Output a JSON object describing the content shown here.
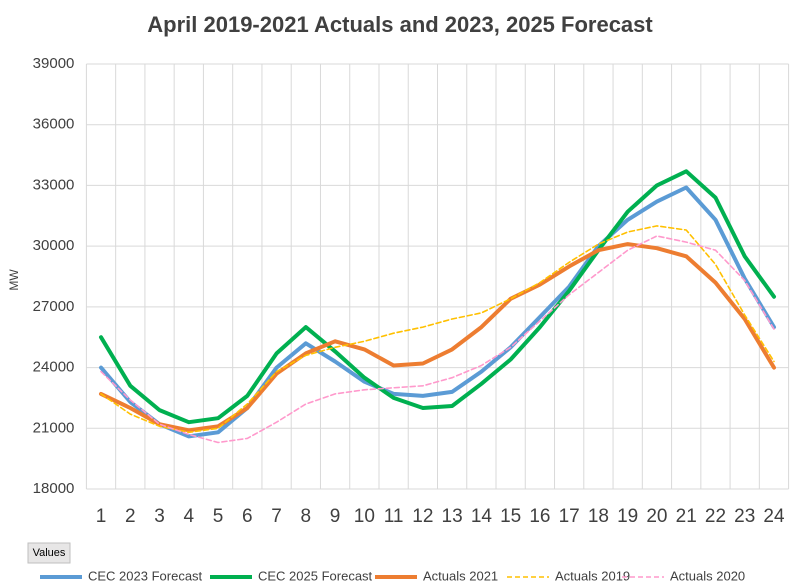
{
  "chart_data": {
    "type": "line",
    "title": "April 2019-2021 Actuals and 2023, 2025 Forecast",
    "y_label": "MW",
    "field_button": "Values",
    "categories": [
      "1",
      "2",
      "3",
      "4",
      "5",
      "6",
      "7",
      "8",
      "9",
      "10",
      "11",
      "12",
      "13",
      "14",
      "15",
      "16",
      "17",
      "18",
      "19",
      "20",
      "21",
      "22",
      "23",
      "24"
    ],
    "ylim": [
      18000,
      39000
    ],
    "yticks": [
      18000,
      21000,
      24000,
      27000,
      30000,
      33000,
      36000,
      39000
    ],
    "grid": true,
    "legend": "bottom",
    "series": [
      {
        "name": "CEC 2023 Forecast",
        "color": "#5b9bd5",
        "dashed": false,
        "values": [
          24000,
          22300,
          21200,
          20600,
          20800,
          22000,
          24000,
          25200,
          24300,
          23300,
          22700,
          22600,
          22800,
          23800,
          25000,
          26500,
          28000,
          30000,
          31300,
          32200,
          32900,
          31300,
          28400,
          26000
        ]
      },
      {
        "name": "CEC 2025 Forecast",
        "color": "#00b050",
        "dashed": false,
        "values": [
          25500,
          23100,
          21900,
          21300,
          21500,
          22600,
          24700,
          26000,
          24800,
          23500,
          22500,
          22000,
          22100,
          23200,
          24400,
          26000,
          27800,
          29800,
          31700,
          33000,
          33700,
          32400,
          29500,
          27500
        ]
      },
      {
        "name": "Actuals 2021",
        "color": "#ed7d31",
        "dashed": false,
        "values": [
          22700,
          22000,
          21200,
          20900,
          21100,
          22000,
          23700,
          24700,
          25300,
          24900,
          24100,
          24200,
          24900,
          26000,
          27400,
          28100,
          29000,
          29800,
          30100,
          29900,
          29500,
          28200,
          26400,
          24000
        ]
      },
      {
        "name": "Actuals 2019",
        "color": "#ffc000",
        "dashed": true,
        "values": [
          22700,
          21700,
          21100,
          20800,
          21000,
          22200,
          23800,
          24600,
          25000,
          25300,
          25700,
          26000,
          26400,
          26700,
          27400,
          28200,
          29200,
          30100,
          30700,
          31000,
          30800,
          29100,
          26600,
          24300
        ]
      },
      {
        "name": "Actuals 2020",
        "color": "#ff99cc",
        "dashed": true,
        "values": [
          23800,
          22400,
          21200,
          20700,
          20300,
          20500,
          21300,
          22200,
          22700,
          22900,
          23000,
          23100,
          23500,
          24100,
          25000,
          26300,
          27600,
          28700,
          29800,
          30500,
          30200,
          29800,
          28300,
          25900
        ]
      }
    ]
  }
}
